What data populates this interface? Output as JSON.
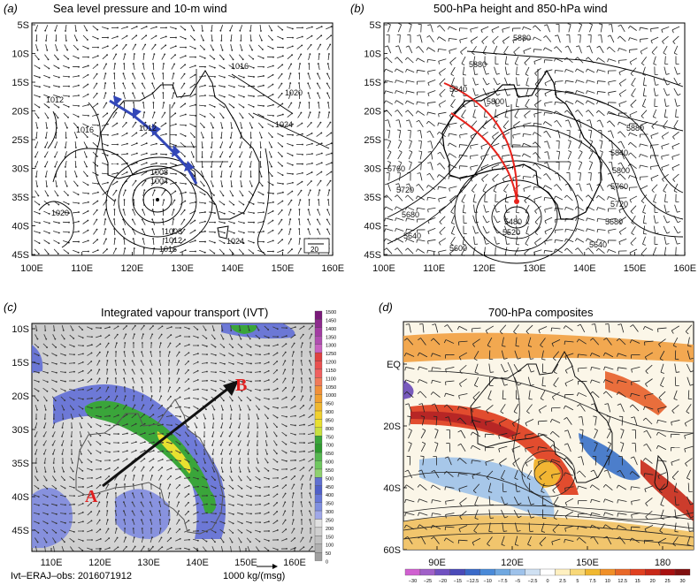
{
  "panels": [
    {
      "letter": "(a)",
      "title": "Sea level pressure and 10-m wind",
      "lat_labels": [
        "5S",
        "10S",
        "15S",
        "20S",
        "25S",
        "30S",
        "35S",
        "40S",
        "45S"
      ],
      "lon_labels": [
        "100E",
        "110E",
        "120E",
        "130E",
        "140E",
        "150E",
        "160E"
      ],
      "contour_labels": [
        "1016",
        "1012",
        "1020",
        "1016",
        "1024",
        "1012",
        "1008",
        "1004",
        "1020",
        "1008",
        "1012",
        "1016",
        "1024"
      ],
      "ref_vector": "20"
    },
    {
      "letter": "(b)",
      "title": "500-hPa height and 850-hPa wind",
      "lat_labels": [
        "5S",
        "10S",
        "15S",
        "20S",
        "25S",
        "30S",
        "35S",
        "40S",
        "45S"
      ],
      "lon_labels": [
        "100E",
        "110E",
        "120E",
        "130E",
        "140E",
        "150E",
        "160E"
      ],
      "contour_labels": [
        "5880",
        "5880",
        "5840",
        "5800",
        "5880",
        "5840",
        "5800",
        "5760",
        "5760",
        "5720",
        "5680",
        "5640",
        "5480",
        "5520",
        "5600",
        "5680",
        "5640",
        "5720"
      ]
    },
    {
      "letter": "(c)",
      "title": "Integrated vapour transport (IVT)",
      "lat_labels": [
        "10S",
        "15S",
        "20S",
        "30S",
        "35S",
        "40S",
        "45S"
      ],
      "lon_labels": [
        "110E",
        "120E",
        "130E",
        "140E",
        "150E",
        "160E"
      ],
      "point_a": "A",
      "point_b": "B",
      "colorbar": [
        "1500",
        "1450",
        "1400",
        "1350",
        "1300",
        "1250",
        "1200",
        "1150",
        "1100",
        "1050",
        "1000",
        "950",
        "900",
        "850",
        "800",
        "750",
        "700",
        "650",
        "600",
        "550",
        "500",
        "450",
        "400",
        "350",
        "300",
        "250",
        "200",
        "150",
        "100",
        "50",
        "0"
      ],
      "footnote_left": "Ivt–ERAJ–obs: 2016071912",
      "footnote_right": "1000 kg/(msg)"
    },
    {
      "letter": "(d)",
      "title": "700-hPa composites",
      "lat_labels": [
        "EQ",
        "20S",
        "40S",
        "60S"
      ],
      "lon_labels": [
        "90E",
        "120E",
        "150E",
        "180"
      ],
      "colorbar": [
        "−30",
        "−25",
        "−20",
        "−15",
        "−12.5",
        "−10",
        "−7.5",
        "−5",
        "−2.5",
        "0",
        "2.5",
        "5",
        "7.5",
        "10",
        "12.5",
        "15",
        "20",
        "25",
        "30"
      ]
    }
  ],
  "colors": {
    "front": "#3347b8",
    "track": "#e8231c",
    "ivt_low": "#4a5bd0",
    "ivt_mid": "#3aa53a",
    "ivt_high": "#e8e030",
    "arrow": "#111111",
    "label_red": "#e02020"
  }
}
